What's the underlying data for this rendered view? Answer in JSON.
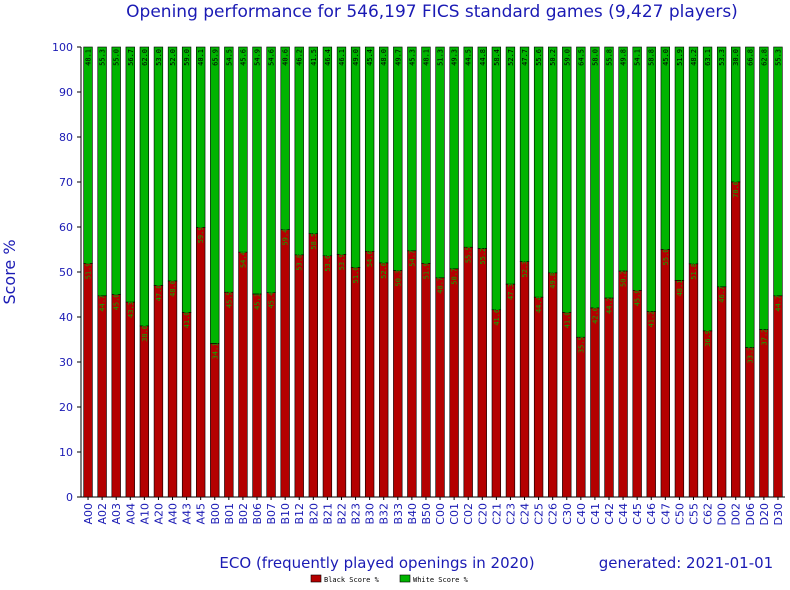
{
  "chart_data": {
    "type": "bar",
    "stacked": true,
    "title": "Opening performance for 546,197 FICS standard games (9,427 players)",
    "xlabel": "ECO (frequently played openings in 2020)",
    "ylabel": "Score %",
    "footer_note": "generated: 2021-01-01",
    "ylim": [
      0,
      100
    ],
    "yticks": [
      "0",
      "10",
      "20",
      "30",
      "40",
      "50",
      "60",
      "70",
      "80",
      "90",
      "100"
    ],
    "grid": false,
    "legend_position": "bottom-center",
    "categories": [
      "A00",
      "A02",
      "A03",
      "A04",
      "A10",
      "A20",
      "A40",
      "A43",
      "A45",
      "B00",
      "B01",
      "B02",
      "B06",
      "B07",
      "B10",
      "B12",
      "B20",
      "B21",
      "B22",
      "B23",
      "B30",
      "B32",
      "B33",
      "B40",
      "B50",
      "C00",
      "C01",
      "C02",
      "C20",
      "C21",
      "C23",
      "C24",
      "C25",
      "C26",
      "C30",
      "C40",
      "C41",
      "C42",
      "C44",
      "C45",
      "C46",
      "C47",
      "C50",
      "C55",
      "C62",
      "D00",
      "D02",
      "D06",
      "D20",
      "D30"
    ],
    "series": [
      {
        "name": "Black Score %",
        "color": "#b40000",
        "values": [
          51.9,
          44.7,
          45.0,
          43.3,
          38.0,
          47.0,
          48.0,
          41.0,
          59.9,
          34.1,
          45.5,
          54.4,
          45.1,
          45.4,
          59.4,
          53.8,
          58.5,
          53.6,
          53.9,
          51.0,
          54.6,
          52.0,
          50.3,
          54.7,
          51.9,
          48.7,
          50.7,
          55.5,
          55.2,
          41.6,
          47.3,
          52.3,
          44.4,
          49.8,
          41.0,
          35.5,
          42.0,
          44.2,
          50.2,
          45.9,
          41.2,
          55.0,
          48.1,
          51.8,
          36.9,
          46.7,
          70.0,
          33.2,
          37.2,
          44.7
        ],
        "labels": [
          "51.9",
          "44.7",
          "45.0",
          "43.3",
          "38.0",
          "47.0",
          "48.0",
          "41.0",
          "59.9",
          "34.1",
          "45.5",
          "54.4",
          "45.1",
          "45.4",
          "59.4",
          "53.8",
          "58.5",
          "53.6",
          "53.9",
          "51.0",
          "54.6",
          "52.0",
          "50.3",
          "54.7",
          "51.9",
          "48.7",
          "50.7",
          "55.5",
          "55.2",
          "41.6",
          "47.3",
          "52.3",
          "44.4",
          "49.8",
          "41.0",
          "35.5",
          "42.0",
          "44.2",
          "50.2",
          "45.9",
          "41.2",
          "55.0",
          "48.1",
          "51.8",
          "36.9",
          "46.7",
          "70.0",
          "33.2",
          "37.2",
          "44.7"
        ]
      },
      {
        "name": "White Score %",
        "color": "#00b400",
        "values": [
          48.1,
          55.3,
          55.0,
          56.7,
          62.0,
          53.0,
          52.0,
          59.0,
          40.1,
          65.9,
          54.5,
          45.6,
          54.9,
          54.6,
          40.6,
          46.2,
          41.5,
          46.4,
          46.1,
          49.0,
          45.4,
          48.0,
          49.7,
          45.3,
          48.1,
          51.3,
          49.3,
          44.5,
          44.8,
          58.4,
          52.7,
          47.7,
          55.6,
          50.2,
          59.0,
          64.5,
          58.0,
          55.8,
          49.8,
          54.1,
          58.8,
          45.0,
          51.9,
          48.2,
          63.1,
          53.3,
          30.0,
          66.8,
          62.8,
          55.3
        ],
        "labels": [
          "48.1",
          "55.3",
          "55.0",
          "56.7",
          "62.0",
          "53.0",
          "52.0",
          "59.0",
          "40.1",
          "65.9",
          "54.5",
          "45.6",
          "54.9",
          "54.6",
          "40.6",
          "46.2",
          "41.5",
          "46.4",
          "46.1",
          "49.0",
          "45.4",
          "48.0",
          "49.7",
          "45.3",
          "48.1",
          "51.3",
          "49.3",
          "44.5",
          "44.8",
          "58.4",
          "52.7",
          "47.7",
          "55.6",
          "50.2",
          "59.0",
          "64.5",
          "58.0",
          "55.8",
          "49.8",
          "54.1",
          "58.8",
          "45.0",
          "51.9",
          "48.2",
          "63.1",
          "53.3",
          "30.0",
          "66.8",
          "62.8",
          "55.3"
        ]
      }
    ]
  }
}
